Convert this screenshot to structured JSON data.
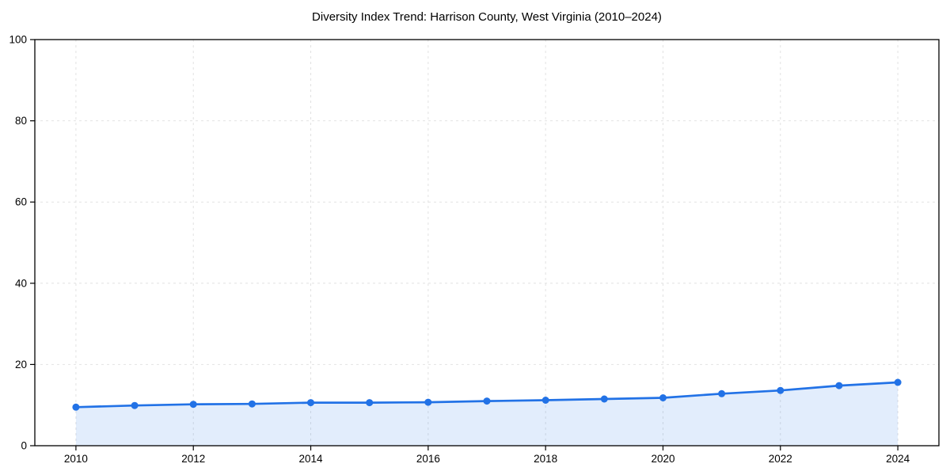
{
  "chart_data": {
    "type": "line",
    "title": "Diversity Index Trend: Harrison County, West Virginia (2010–2024)",
    "x": [
      2010,
      2011,
      2012,
      2013,
      2014,
      2015,
      2016,
      2017,
      2018,
      2019,
      2020,
      2021,
      2022,
      2023,
      2024
    ],
    "series": [
      {
        "name": "Diversity Index",
        "values": [
          9.5,
          9.9,
          10.2,
          10.3,
          10.6,
          10.6,
          10.7,
          11.0,
          11.2,
          11.5,
          11.8,
          12.8,
          13.6,
          14.8,
          15.6
        ]
      }
    ],
    "xlabel": "",
    "ylabel": "",
    "ylim": [
      0,
      100
    ],
    "yticks": [
      0,
      20,
      40,
      60,
      80,
      100
    ],
    "xticks": [
      2010,
      2012,
      2014,
      2016,
      2018,
      2020,
      2022,
      2024
    ],
    "grid": "dashed-both-axes",
    "legend": "none",
    "marker": "circle",
    "colors": {
      "line": "#2272e6",
      "fill": "rgba(34,114,230,0.13)",
      "grid": "#e2e2e2",
      "spine": "#000000",
      "tick_label": "#000000"
    }
  }
}
